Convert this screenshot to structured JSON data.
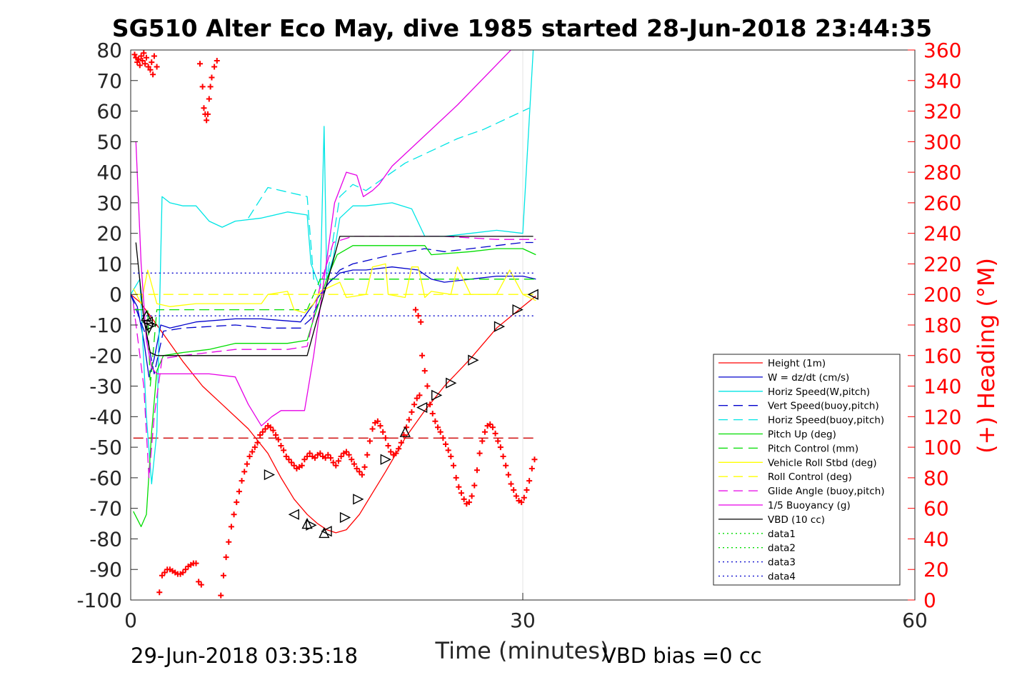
{
  "title": "SG510 Alter Eco May, dive 1985 started 28-Jun-2018 23:44:35",
  "footer": {
    "start_time": "29-Jun-2018 03:35:18",
    "vbd_bias": "VBD bias =0 cc"
  },
  "colors": {
    "heading": "#ff0000",
    "axis": "#262626",
    "grid": "#e6e6e6"
  },
  "chart_data": {
    "type": "line",
    "xlabel": "Time (minutes)",
    "ylabel_left": "",
    "ylabel_right": "(+) Heading (°M)",
    "xlim": [
      0,
      60
    ],
    "ylim_left": [
      -100,
      80
    ],
    "ylim_right": [
      0,
      360
    ],
    "xticks": [
      0,
      30,
      60
    ],
    "yticks_left": [
      80,
      70,
      60,
      50,
      40,
      30,
      20,
      10,
      0,
      -10,
      -20,
      -30,
      -40,
      -50,
      -60,
      -70,
      -80,
      -90,
      -100
    ],
    "yticks_right": [
      360,
      340,
      320,
      300,
      280,
      260,
      240,
      220,
      200,
      180,
      160,
      140,
      120,
      100,
      80,
      60,
      40,
      20,
      0
    ],
    "grid": "x-only",
    "legend_position": "lower-right inside",
    "series": [
      {
        "name": "Height (1m)",
        "color": "#ff0000",
        "style": "solid",
        "axis": "left",
        "x": [
          0,
          0.7,
          1.5,
          2.5,
          4,
          5.5,
          7,
          9,
          10.5,
          11.5,
          12.5,
          13.5,
          14.3,
          15,
          15.7,
          16.5,
          17.5,
          18.5,
          19.5,
          21,
          22.5,
          24,
          26,
          28,
          30,
          31
        ],
        "y": [
          0,
          -2.5,
          -7,
          -13,
          -22,
          -30,
          -36,
          -44,
          -52,
          -60,
          -67,
          -72,
          -75,
          -77,
          -78,
          -77,
          -72,
          -65,
          -58,
          -47,
          -38,
          -30,
          -21,
          -11,
          -4,
          -0.5
        ]
      },
      {
        "name": "W = dz/dt (cm/s)",
        "color": "#0000cc",
        "style": "solid",
        "axis": "left",
        "x": [
          0,
          0.5,
          1,
          1.4,
          1.8,
          2.3,
          3,
          5,
          8,
          10,
          13,
          13.5,
          14.5,
          15.2,
          16,
          17,
          18,
          20,
          22,
          23,
          24,
          26,
          28,
          30,
          31
        ],
        "y": [
          0,
          -4,
          -15,
          -27,
          -21,
          -10,
          -11,
          -9,
          -8,
          -8,
          -9,
          -6,
          0,
          4,
          7,
          8,
          8,
          9,
          8,
          5,
          4,
          5,
          6,
          6,
          5
        ]
      },
      {
        "name": "Horiz Speed(W,pitch)",
        "color": "#00e5e5",
        "style": "solid",
        "axis": "left",
        "x": [
          0,
          0.7,
          1.2,
          1.6,
          2,
          2.4,
          3,
          4,
          5,
          6,
          7,
          8,
          10,
          12,
          13.5,
          13.8,
          14.5,
          14.8,
          15,
          15.5,
          16,
          17,
          18,
          20,
          21.5,
          22.5,
          24,
          26,
          28,
          30,
          30.8
        ],
        "y": [
          0,
          5,
          -40,
          -62,
          -45,
          32,
          30,
          29,
          29,
          24,
          22,
          24,
          25,
          27,
          26,
          10,
          2,
          55,
          5,
          12,
          25,
          29,
          29,
          30,
          28,
          19,
          19,
          20,
          21,
          20,
          80
        ]
      },
      {
        "name": "Vert Speed(buoy,pitch)",
        "color": "#0000cc",
        "style": "dash",
        "axis": "left",
        "x": [
          0,
          1.3,
          1.8,
          2.5,
          4,
          8,
          10.5,
          13,
          13.8,
          15,
          16,
          17,
          20,
          22.5,
          24,
          26,
          28,
          30,
          30.8
        ],
        "y": [
          0,
          -15,
          -26,
          -12,
          -11,
          -10,
          -11,
          -11,
          -8,
          3,
          8,
          10,
          13,
          15,
          14,
          15,
          16,
          17,
          17
        ]
      },
      {
        "name": "Horiz Speed(buoy,pitch)",
        "color": "#00e5e5",
        "style": "dash",
        "axis": "left",
        "x": [
          9,
          10.5,
          13.5,
          14,
          15,
          16,
          17,
          18,
          19,
          21,
          23,
          25,
          27,
          29,
          30.5
        ],
        "y": [
          25,
          35,
          32,
          5,
          5,
          32,
          36,
          34,
          37,
          43,
          47,
          51,
          54,
          58,
          61
        ]
      },
      {
        "name": "Pitch Up (deg)",
        "color": "#00dd00",
        "style": "solid",
        "axis": "left",
        "x": [
          0.2,
          0.8,
          1.2,
          1.6,
          2,
          2.5,
          4,
          6,
          8,
          10,
          12,
          13.5,
          14,
          15,
          15.8,
          17,
          20,
          22.5,
          23,
          26,
          28,
          30,
          31
        ],
        "y": [
          -71,
          -76,
          -72,
          -45,
          -25,
          -20,
          -19,
          -18,
          -16,
          -16,
          -16,
          -15,
          -8,
          5,
          13,
          16,
          16,
          16,
          13,
          14,
          15,
          15,
          13
        ]
      },
      {
        "name": "Pitch Control (mm)",
        "color": "#00dd00",
        "style": "dash",
        "axis": "left",
        "x": [
          0.2,
          1.3,
          1.5,
          2,
          13.5,
          14.5,
          15.5,
          31
        ],
        "y": [
          -5,
          -5,
          -30,
          -5,
          -5,
          5,
          5,
          5
        ]
      },
      {
        "name": "Vehicle Roll Stbd (deg)",
        "color": "#ffff00",
        "style": "solid",
        "axis": "left",
        "x": [
          0.2,
          0.8,
          1.3,
          2,
          3,
          5,
          10,
          10.5,
          12,
          12.5,
          13.3,
          14,
          14.5,
          16,
          16.5,
          18,
          18.5,
          19.5,
          19.7,
          21,
          21.5,
          22,
          22.5,
          23,
          24.5,
          25,
          26,
          28,
          29,
          30,
          31
        ],
        "y": [
          2,
          -3,
          8,
          -3,
          -4,
          -3,
          -3,
          0,
          1,
          -5,
          -6,
          -3,
          1,
          4,
          -1,
          0,
          9,
          10,
          0,
          -1,
          9,
          9,
          -1,
          1,
          0,
          9,
          0,
          0,
          8,
          0,
          -2
        ]
      },
      {
        "name": "Roll Control (deg)",
        "color": "#ffff00",
        "style": "dash",
        "axis": "left",
        "x": [
          0.2,
          13.5,
          14,
          31
        ],
        "y": [
          0,
          0,
          0,
          0
        ]
      },
      {
        "name": "Glide Angle (buoy,pitch)",
        "color": "#e600e6",
        "style": "dash",
        "axis": "left",
        "x": [
          0.2,
          1,
          1.4,
          1.8,
          2.4,
          4,
          6,
          8,
          10,
          12,
          13.5,
          14.5,
          15.5,
          17,
          20,
          24,
          28,
          31
        ],
        "y": [
          -3,
          -30,
          -60,
          -40,
          -21,
          -20,
          -19,
          -18,
          -18,
          -18,
          -17,
          3,
          17,
          19,
          19,
          19,
          18,
          18
        ]
      },
      {
        "name": "1/5 Buoyancy (g)",
        "color": "#e600e6",
        "style": "solid",
        "axis": "left",
        "x": [
          0.4,
          0.8,
          1.2,
          1.6,
          2,
          4,
          6,
          8,
          9,
          10,
          10.8,
          11.5,
          12.3,
          13.3,
          14,
          14.8,
          15.6,
          16.5,
          17.3,
          17.8,
          18.5,
          19,
          20,
          25,
          30,
          33
        ],
        "y": [
          50,
          10,
          -15,
          -24,
          -26,
          -26,
          -26,
          -27,
          -36,
          -43,
          -40,
          -38,
          -38,
          -38,
          -20,
          5,
          30,
          40,
          39,
          32,
          34,
          36,
          42,
          62,
          84,
          95
        ]
      },
      {
        "name": "VBD (10 cc)",
        "color": "#000000",
        "style": "solid",
        "axis": "left",
        "x": [
          0.4,
          1,
          1.5,
          2,
          13.5,
          16,
          30.8
        ],
        "y": [
          17,
          -8,
          -19,
          -20,
          -20,
          19,
          19
        ]
      },
      {
        "name": "data1",
        "color": "#00dd00",
        "style": "dot",
        "axis": "left",
        "x": [],
        "y": []
      },
      {
        "name": "data2",
        "color": "#00dd00",
        "style": "dot",
        "axis": "left",
        "x": [],
        "y": []
      },
      {
        "name": "data3",
        "color": "#0000cc",
        "style": "dot",
        "axis": "left",
        "x": [
          0.2,
          31
        ],
        "y": [
          7,
          7
        ]
      },
      {
        "name": "data4",
        "color": "#0000cc",
        "style": "dot",
        "axis": "left",
        "x": [
          0.2,
          31
        ],
        "y": [
          -7,
          -7
        ]
      }
    ],
    "extra_lines": [
      {
        "color": "#cc0000",
        "style": "dash",
        "axis": "left",
        "x": [
          0.2,
          31
        ],
        "y": [
          -47,
          -47
        ]
      }
    ],
    "heading_points": {
      "color": "#ff0000",
      "marker": "+",
      "axis": "right",
      "x": [
        0.3,
        0.4,
        0.5,
        0.6,
        0.7,
        0.8,
        0.9,
        1.0,
        1.1,
        1.2,
        1.35,
        1.5,
        1.6,
        1.7,
        1.8,
        2.0,
        5.3,
        5.5,
        5.6,
        5.7,
        5.8,
        5.9,
        6.0,
        6.1,
        6.2,
        6.4,
        6.6,
        2.2,
        2.4,
        2.6,
        2.8,
        3.0,
        3.2,
        3.4,
        3.6,
        3.8,
        4.0,
        4.2,
        4.4,
        4.6,
        4.8,
        5.0,
        5.2,
        5.4,
        6.9,
        7.1,
        7.3,
        7.5,
        7.7,
        7.9,
        8.1,
        8.3,
        8.5,
        8.7,
        8.9,
        9.1,
        9.3,
        9.5,
        9.7,
        9.9,
        10.1,
        10.3,
        10.5,
        10.7,
        10.9,
        11.1,
        11.3,
        11.5,
        11.7,
        11.9,
        12.1,
        12.3,
        12.5,
        12.7,
        12.9,
        13.1,
        13.3,
        13.5,
        13.7,
        13.9,
        14.1,
        14.3,
        14.5,
        14.7,
        14.9,
        15.1,
        15.3,
        15.5,
        15.7,
        15.9,
        16.1,
        16.3,
        16.5,
        16.7,
        16.9,
        17.1,
        17.3,
        17.5,
        17.7,
        17.9,
        18.1,
        18.3,
        18.5,
        18.7,
        18.9,
        19.1,
        19.3,
        19.5,
        19.7,
        19.9,
        20.1,
        20.3,
        20.5,
        20.7,
        20.9,
        21.1,
        21.3,
        21.5,
        21.7,
        21.9,
        22.1,
        22.3,
        22.5,
        22.7,
        22.9,
        23.1,
        23.3,
        23.5,
        23.7,
        23.9,
        24.1,
        24.3,
        24.5,
        24.7,
        24.9,
        25.1,
        25.3,
        25.5,
        25.7,
        25.9,
        26.1,
        26.3,
        26.5,
        26.7,
        26.9,
        27.1,
        27.3,
        27.5,
        27.7,
        27.9,
        28.1,
        28.3,
        28.5,
        28.7,
        28.9,
        29.1,
        29.3,
        29.5,
        29.7,
        29.9,
        30.1,
        30.3,
        30.5,
        30.7,
        30.9,
        22.0,
        22.2,
        21.8
      ],
      "y": [
        357,
        355,
        352,
        354,
        350,
        356,
        353,
        358,
        351,
        355,
        349,
        347,
        352,
        344,
        356,
        349,
        351,
        336,
        322,
        318,
        314,
        318,
        328,
        336,
        342,
        349,
        353,
        5,
        16,
        18,
        20,
        20,
        19,
        18,
        17,
        17,
        18,
        20,
        22,
        23,
        24,
        24,
        12,
        10,
        3,
        16,
        28,
        38,
        48,
        56,
        64,
        71,
        78,
        84,
        89,
        94,
        97,
        100,
        103,
        108,
        110,
        112,
        114,
        113,
        111,
        108,
        105,
        101,
        98,
        94,
        92,
        90,
        88,
        86,
        87,
        88,
        92,
        94,
        96,
        94,
        93,
        95,
        96,
        94,
        93,
        95,
        93,
        90,
        88,
        91,
        94,
        96,
        97,
        95,
        92,
        89,
        86,
        84,
        82,
        87,
        95,
        104,
        112,
        116,
        117,
        114,
        110,
        106,
        101,
        97,
        95,
        96,
        99,
        103,
        108,
        113,
        118,
        123,
        128,
        132,
        134,
        160,
        150,
        140,
        128,
        122,
        117,
        113,
        110,
        106,
        102,
        98,
        94,
        88,
        80,
        74,
        70,
        66,
        63,
        64,
        68,
        75,
        85,
        96,
        104,
        110,
        114,
        115,
        113,
        109,
        104,
        100,
        94,
        88,
        82,
        76,
        72,
        68,
        65,
        64,
        67,
        72,
        78,
        86,
        92,
        186,
        182,
        190
      ]
    },
    "vbd_markers": {
      "color": "#000000",
      "axis": "left",
      "points": [
        {
          "x": 1.2,
          "y": -7,
          "dir": "up"
        },
        {
          "x": 1.3,
          "y": -9,
          "dir": "left"
        },
        {
          "x": 1.4,
          "y": -11,
          "dir": "down"
        },
        {
          "x": 1.6,
          "y": -10,
          "dir": "right"
        },
        {
          "x": 10.6,
          "y": -59,
          "dir": "right"
        },
        {
          "x": 12.5,
          "y": -72,
          "dir": "left"
        },
        {
          "x": 13.5,
          "y": -75,
          "dir": "up"
        },
        {
          "x": 13.8,
          "y": -75.5,
          "dir": "right"
        },
        {
          "x": 14.8,
          "y": -78,
          "dir": "up"
        },
        {
          "x": 15,
          "y": -77.5,
          "dir": "left"
        },
        {
          "x": 16.4,
          "y": -73,
          "dir": "right"
        },
        {
          "x": 17.4,
          "y": -67,
          "dir": "right"
        },
        {
          "x": 19.5,
          "y": -54,
          "dir": "right"
        },
        {
          "x": 21,
          "y": -45,
          "dir": "up"
        },
        {
          "x": 22.3,
          "y": -37,
          "dir": "left"
        },
        {
          "x": 23.4,
          "y": -33,
          "dir": "right"
        },
        {
          "x": 24.5,
          "y": -29,
          "dir": "right"
        },
        {
          "x": 26.2,
          "y": -21.5,
          "dir": "right"
        },
        {
          "x": 28.2,
          "y": -10.5,
          "dir": "right"
        },
        {
          "x": 29.6,
          "y": -5,
          "dir": "right"
        },
        {
          "x": 30.8,
          "y": 0,
          "dir": "left"
        }
      ]
    }
  }
}
